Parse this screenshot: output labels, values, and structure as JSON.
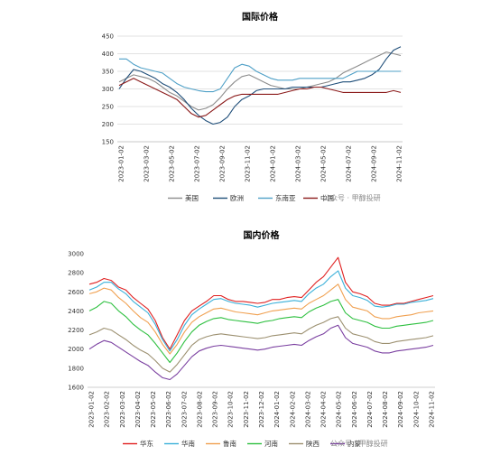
{
  "chart_data": [
    {
      "type": "line",
      "title": "国际价格",
      "xlabel": "",
      "ylabel": "",
      "ylim": [
        150,
        450
      ],
      "yticks": [
        150,
        200,
        250,
        300,
        350,
        400,
        450
      ],
      "x_tick_labels": [
        "2023-01-02",
        "2023-03-02",
        "2023-05-02",
        "2023-07-02",
        "2023-09-02",
        "2023-11-02",
        "2024-01-02",
        "2024-03-02",
        "2024-05-02",
        "2024-07-02",
        "2024-09-02",
        "2024-11-02"
      ],
      "grid": "horizontal",
      "legend": "bottom",
      "series": [
        {
          "name": "美国",
          "color": "#8c8c8c",
          "values": [
            320,
            330,
            340,
            335,
            330,
            320,
            305,
            290,
            280,
            265,
            250,
            240,
            245,
            255,
            275,
            300,
            320,
            335,
            340,
            330,
            320,
            310,
            305,
            300,
            300,
            300,
            305,
            310,
            315,
            320,
            330,
            345,
            355,
            365,
            375,
            385,
            395,
            405,
            400,
            395
          ]
        },
        {
          "name": "欧洲",
          "color": "#1f4e79",
          "values": [
            300,
            330,
            355,
            350,
            340,
            330,
            315,
            305,
            290,
            270,
            245,
            225,
            210,
            200,
            205,
            220,
            250,
            270,
            280,
            295,
            300,
            300,
            300,
            300,
            305,
            305,
            305,
            305,
            305,
            310,
            315,
            320,
            320,
            325,
            330,
            340,
            355,
            385,
            410,
            420
          ]
        },
        {
          "name": "东南亚",
          "color": "#4fa0c7",
          "values": [
            385,
            385,
            370,
            360,
            355,
            350,
            345,
            330,
            315,
            305,
            300,
            295,
            292,
            292,
            300,
            330,
            360,
            370,
            365,
            350,
            340,
            330,
            325,
            325,
            325,
            330,
            330,
            330,
            330,
            330,
            330,
            330,
            340,
            350,
            350,
            350,
            350,
            350,
            350,
            350
          ]
        },
        {
          "name": "中国",
          "color": "#8b1a1a",
          "values": [
            310,
            320,
            330,
            320,
            310,
            300,
            290,
            280,
            270,
            250,
            230,
            220,
            225,
            240,
            255,
            270,
            280,
            285,
            285,
            285,
            285,
            285,
            285,
            290,
            295,
            300,
            300,
            305,
            305,
            300,
            295,
            290,
            290,
            290,
            290,
            290,
            290,
            290,
            295,
            290
          ]
        }
      ],
      "watermark": "公众号 · 甲醇投研"
    },
    {
      "type": "line",
      "title": "国内价格",
      "xlabel": "",
      "ylabel": "",
      "ylim": [
        1600,
        3000
      ],
      "yticks": [
        1600,
        1800,
        2000,
        2200,
        2400,
        2600,
        2800,
        3000
      ],
      "x_tick_labels": [
        "2023-01-02",
        "2023-02-02",
        "2023-03-02",
        "2023-04-02",
        "2023-05-02",
        "2023-06-02",
        "2023-07-02",
        "2023-08-02",
        "2023-09-02",
        "2023-10-02",
        "2023-11-02",
        "2023-12-02",
        "2024-01-02",
        "2024-02-02",
        "2024-03-02",
        "2024-04-02",
        "2024-05-02",
        "2024-06-02",
        "2024-07-02",
        "2024-08-02",
        "2024-09-02",
        "2024-10-02",
        "2024-11-02"
      ],
      "grid": "none",
      "legend": "bottom",
      "series": [
        {
          "name": "华东",
          "color": "#e02020",
          "values": [
            2680,
            2700,
            2740,
            2720,
            2650,
            2620,
            2540,
            2480,
            2420,
            2300,
            2120,
            2000,
            2150,
            2300,
            2400,
            2450,
            2500,
            2560,
            2560,
            2520,
            2500,
            2500,
            2490,
            2480,
            2490,
            2520,
            2520,
            2540,
            2550,
            2540,
            2620,
            2700,
            2760,
            2860,
            2960,
            2700,
            2600,
            2580,
            2550,
            2480,
            2460,
            2460,
            2480,
            2480,
            2500,
            2520,
            2540,
            2560
          ]
        },
        {
          "name": "华南",
          "color": "#3ab0d9",
          "values": [
            2620,
            2650,
            2700,
            2700,
            2630,
            2580,
            2500,
            2440,
            2380,
            2260,
            2100,
            1980,
            2100,
            2250,
            2360,
            2420,
            2470,
            2520,
            2530,
            2500,
            2480,
            2470,
            2460,
            2440,
            2460,
            2480,
            2490,
            2500,
            2510,
            2500,
            2580,
            2640,
            2680,
            2760,
            2820,
            2640,
            2560,
            2540,
            2510,
            2450,
            2440,
            2450,
            2470,
            2470,
            2490,
            2500,
            2510,
            2530
          ]
        },
        {
          "name": "鲁南",
          "color": "#f0a050",
          "values": [
            2580,
            2600,
            2640,
            2620,
            2540,
            2480,
            2400,
            2330,
            2280,
            2180,
            2050,
            1950,
            2050,
            2180,
            2280,
            2340,
            2380,
            2420,
            2430,
            2410,
            2390,
            2380,
            2370,
            2360,
            2380,
            2400,
            2410,
            2420,
            2430,
            2420,
            2480,
            2520,
            2560,
            2620,
            2680,
            2520,
            2440,
            2420,
            2400,
            2340,
            2320,
            2320,
            2340,
            2350,
            2360,
            2380,
            2390,
            2400
          ]
        },
        {
          "name": "河南",
          "color": "#2ec040",
          "values": [
            2400,
            2440,
            2500,
            2480,
            2400,
            2340,
            2260,
            2200,
            2150,
            2060,
            1960,
            1860,
            1960,
            2080,
            2180,
            2250,
            2290,
            2320,
            2330,
            2310,
            2300,
            2290,
            2280,
            2270,
            2290,
            2300,
            2320,
            2330,
            2340,
            2330,
            2390,
            2430,
            2460,
            2500,
            2520,
            2380,
            2320,
            2300,
            2280,
            2240,
            2220,
            2220,
            2240,
            2250,
            2260,
            2270,
            2280,
            2300
          ]
        },
        {
          "name": "陕西",
          "color": "#9c9070",
          "values": [
            2150,
            2180,
            2220,
            2200,
            2150,
            2100,
            2040,
            1990,
            1950,
            1880,
            1800,
            1760,
            1840,
            1940,
            2040,
            2100,
            2130,
            2150,
            2160,
            2150,
            2140,
            2130,
            2120,
            2110,
            2120,
            2140,
            2150,
            2160,
            2170,
            2160,
            2210,
            2250,
            2280,
            2320,
            2340,
            2220,
            2160,
            2140,
            2120,
            2080,
            2060,
            2060,
            2080,
            2090,
            2100,
            2110,
            2120,
            2140
          ]
        },
        {
          "name": "内蒙",
          "color": "#7a3fa0",
          "values": [
            2000,
            2050,
            2090,
            2070,
            2020,
            1970,
            1920,
            1870,
            1830,
            1760,
            1700,
            1680,
            1740,
            1830,
            1920,
            1980,
            2010,
            2030,
            2040,
            2030,
            2020,
            2010,
            2000,
            1990,
            2000,
            2020,
            2030,
            2040,
            2050,
            2040,
            2090,
            2130,
            2160,
            2220,
            2250,
            2120,
            2060,
            2040,
            2020,
            1980,
            1960,
            1960,
            1980,
            1990,
            2000,
            2010,
            2020,
            2040
          ]
        }
      ],
      "watermark": "公众号 · 甲醇投研"
    }
  ]
}
